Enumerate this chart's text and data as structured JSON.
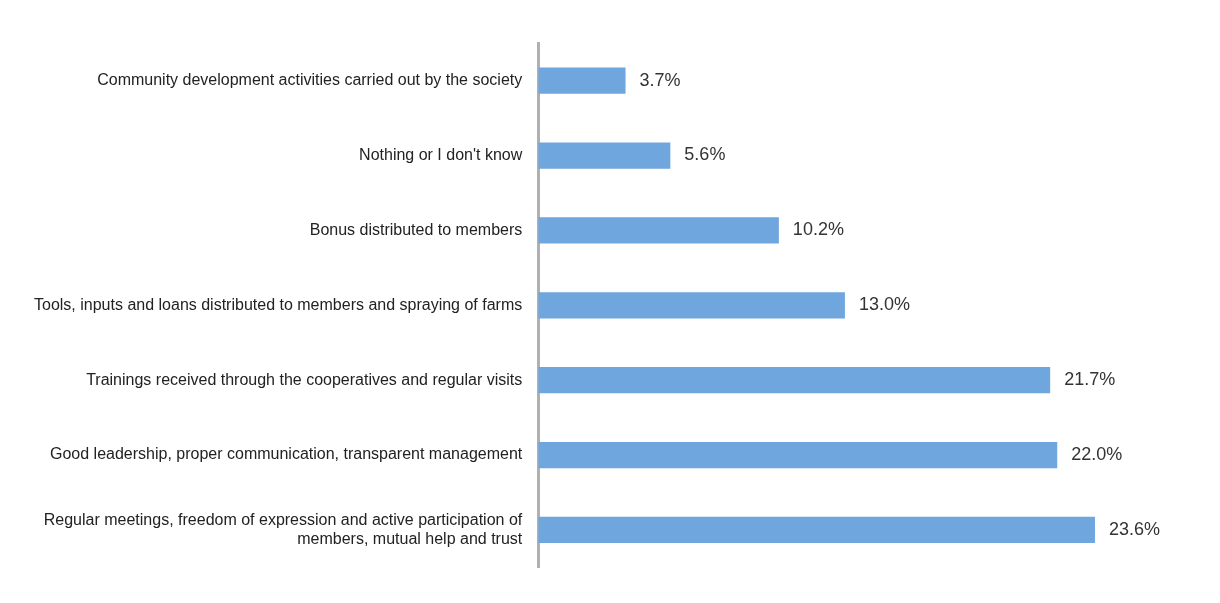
{
  "chart_data": {
    "type": "bar",
    "orientation": "horizontal",
    "categories": [
      "Community development activities carried out by the society",
      "Nothing or I don't know",
      "Bonus distributed to members",
      "Tools, inputs and loans distributed to members and spraying of farms",
      "Trainings received through the cooperatives and regular visits",
      "Good leadership, proper communication, transparent management",
      "Regular meetings, freedom of expression and active participation of members, mutual help and trust"
    ],
    "values": [
      3.7,
      5.6,
      10.2,
      13.0,
      21.7,
      22.0,
      23.6
    ],
    "value_labels": [
      "3.7%",
      "5.6%",
      "10.2%",
      "13.0%",
      "21.7%",
      "22.0%",
      "23.6%"
    ],
    "color": "#6fa6dd",
    "tick_labels": "y",
    "grid": false,
    "legend": false
  }
}
